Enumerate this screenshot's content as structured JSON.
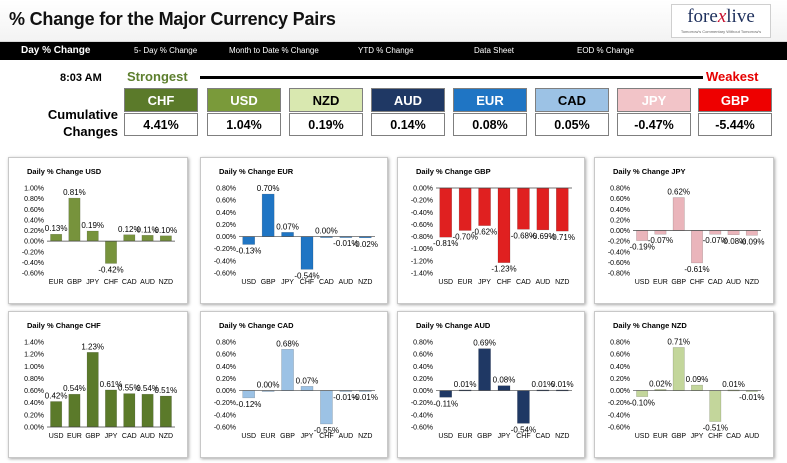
{
  "header": {
    "title": "% Change for the Major Currency Pairs",
    "logo": {
      "brand_pre": "fore",
      "brand_x": "x",
      "brand_post": "live",
      "tagline": "Tomorrow's Commentary Without Tomorrow's"
    }
  },
  "nav": {
    "items": [
      {
        "label": "Day % Change"
      },
      {
        "label": "5- Day % Change"
      },
      {
        "label": "Month to Date % Change"
      },
      {
        "label": "YTD % Change"
      },
      {
        "label": "Data Sheet"
      },
      {
        "label": "EOD % Change"
      }
    ]
  },
  "ranking": {
    "time": "8:03 AM",
    "strongest_label": "Strongest",
    "weakest_label": "Weakest",
    "cumulative_label": "Cumulative Changes",
    "currencies": [
      {
        "name": "CHF",
        "value": "4.41%",
        "bg": "#5b7a2a",
        "fg": "#ffffff"
      },
      {
        "name": "USD",
        "value": "1.04%",
        "bg": "#7a9a3a",
        "fg": "#ffffff"
      },
      {
        "name": "NZD",
        "value": "0.19%",
        "bg": "#d9e8b0",
        "fg": "#000000"
      },
      {
        "name": "AUD",
        "value": "0.14%",
        "bg": "#1f3864",
        "fg": "#ffffff"
      },
      {
        "name": "EUR",
        "value": "0.08%",
        "bg": "#1f75c4",
        "fg": "#ffffff"
      },
      {
        "name": "CAD",
        "value": "0.05%",
        "bg": "#9cc2e5",
        "fg": "#000000"
      },
      {
        "name": "JPY",
        "value": "-0.47%",
        "bg": "#f2c4c8",
        "fg": "#ffffff"
      },
      {
        "name": "GBP",
        "value": "-5.44%",
        "bg": "#ee0000",
        "fg": "#ffffff"
      }
    ]
  },
  "chart_data": [
    {
      "type": "bar",
      "title": "Daily % Change USD",
      "categories": [
        "EUR",
        "GBP",
        "JPY",
        "CHF",
        "CAD",
        "AUD",
        "NZD"
      ],
      "values": [
        0.13,
        0.81,
        0.19,
        -0.42,
        0.12,
        0.11,
        0.1
      ],
      "labels": [
        "0.13%",
        "0.81%",
        "0.19%",
        "-0.42%",
        "0.12%",
        "0.11%",
        "0.10%"
      ],
      "ylim": [
        -0.6,
        1.0
      ],
      "ticks": [
        "1.00%",
        "0.80%",
        "0.60%",
        "0.40%",
        "0.20%",
        "0.00%",
        "-0.20%",
        "-0.40%",
        "-0.60%"
      ],
      "tick_values": [
        1.0,
        0.8,
        0.6,
        0.4,
        0.2,
        0,
        -0.2,
        -0.4,
        -0.6
      ],
      "bar_color": "#77933c"
    },
    {
      "type": "bar",
      "title": "Daily % Change EUR",
      "categories": [
        "USD",
        "GBP",
        "JPY",
        "CHF",
        "CAD",
        "AUD",
        "NZD"
      ],
      "values": [
        -0.13,
        0.7,
        0.07,
        -0.54,
        0.0,
        -0.01,
        -0.02
      ],
      "labels": [
        "-0.13%",
        "0.70%",
        "0.07%",
        "-0.54%",
        "0.00%",
        "-0.01%",
        "-0.02%"
      ],
      "ylim": [
        -0.6,
        0.8
      ],
      "ticks": [
        "0.80%",
        "0.60%",
        "0.40%",
        "0.20%",
        "0.00%",
        "-0.20%",
        "-0.40%",
        "-0.60%"
      ],
      "tick_values": [
        0.8,
        0.6,
        0.4,
        0.2,
        0,
        -0.2,
        -0.4,
        -0.6
      ],
      "bar_color": "#1f75c4"
    },
    {
      "type": "bar",
      "title": "Daily % Change GBP",
      "categories": [
        "USD",
        "EUR",
        "JPY",
        "CHF",
        "CAD",
        "AUD",
        "NZD"
      ],
      "values": [
        -0.81,
        -0.7,
        -0.62,
        -1.23,
        -0.68,
        -0.69,
        -0.71
      ],
      "labels": [
        "-0.81%",
        "-0.70%",
        "-0.62%",
        "-1.23%",
        "-0.68%",
        "-0.69%",
        "-0.71%"
      ],
      "ylim": [
        -1.4,
        0.0
      ],
      "ticks": [
        "0.00%",
        "-0.20%",
        "-0.40%",
        "-0.60%",
        "-0.80%",
        "-1.00%",
        "-1.20%",
        "-1.40%"
      ],
      "tick_values": [
        0,
        -0.2,
        -0.4,
        -0.6,
        -0.8,
        -1.0,
        -1.2,
        -1.4
      ],
      "bar_color": "#e02020"
    },
    {
      "type": "bar",
      "title": "Daily % Change JPY",
      "categories": [
        "USD",
        "EUR",
        "GBP",
        "CHF",
        "CAD",
        "AUD",
        "NZD"
      ],
      "values": [
        -0.19,
        -0.07,
        0.62,
        -0.61,
        -0.07,
        -0.08,
        -0.09
      ],
      "labels": [
        "-0.19%",
        "-0.07%",
        "0.62%",
        "-0.61%",
        "-0.07%",
        "-0.08%",
        "-0.09%"
      ],
      "ylim": [
        -0.8,
        0.8
      ],
      "ticks": [
        "0.80%",
        "0.60%",
        "0.40%",
        "0.20%",
        "0.00%",
        "-0.20%",
        "-0.40%",
        "-0.60%",
        "-0.80%"
      ],
      "tick_values": [
        0.8,
        0.6,
        0.4,
        0.2,
        0,
        -0.2,
        -0.4,
        -0.6,
        -0.8
      ],
      "bar_color": "#eab5bb"
    },
    {
      "type": "bar",
      "title": "Daily % Change CHF",
      "categories": [
        "USD",
        "EUR",
        "GBP",
        "JPY",
        "CAD",
        "AUD",
        "NZD"
      ],
      "values": [
        0.42,
        0.54,
        1.23,
        0.61,
        0.55,
        0.54,
        0.51
      ],
      "labels": [
        "0.42%",
        "0.54%",
        "1.23%",
        "0.61%",
        "0.55%",
        "0.54%",
        "0.51%"
      ],
      "ylim": [
        0.0,
        1.4
      ],
      "ticks": [
        "1.40%",
        "1.20%",
        "1.00%",
        "0.80%",
        "0.60%",
        "0.40%",
        "0.20%",
        "0.00%"
      ],
      "tick_values": [
        1.4,
        1.2,
        1.0,
        0.8,
        0.6,
        0.4,
        0.2,
        0
      ],
      "bar_color": "#5b7a2a"
    },
    {
      "type": "bar",
      "title": "Daily % Change CAD",
      "categories": [
        "USD",
        "EUR",
        "GBP",
        "JPY",
        "CHF",
        "AUD",
        "NZD"
      ],
      "values": [
        -0.12,
        0.0,
        0.68,
        0.07,
        -0.55,
        -0.01,
        -0.01
      ],
      "labels": [
        "-0.12%",
        "0.00%",
        "0.68%",
        "0.07%",
        "-0.55%",
        "-0.01%",
        "-0.01%"
      ],
      "ylim": [
        -0.6,
        0.8
      ],
      "ticks": [
        "0.80%",
        "0.60%",
        "0.40%",
        "0.20%",
        "0.00%",
        "-0.20%",
        "-0.40%",
        "-0.60%"
      ],
      "tick_values": [
        0.8,
        0.6,
        0.4,
        0.2,
        0,
        -0.2,
        -0.4,
        -0.6
      ],
      "bar_color": "#9cc2e5"
    },
    {
      "type": "bar",
      "title": "Daily % Change AUD",
      "categories": [
        "USD",
        "EUR",
        "GBP",
        "JPY",
        "CHF",
        "CAD",
        "NZD"
      ],
      "values": [
        -0.11,
        0.01,
        0.69,
        0.08,
        -0.54,
        0.01,
        0.01
      ],
      "labels": [
        "-0.11%",
        "0.01%",
        "0.69%",
        "0.08%",
        "-0.54%",
        "0.01%",
        "0.01%"
      ],
      "ylim": [
        -0.6,
        0.8
      ],
      "ticks": [
        "0.80%",
        "0.60%",
        "0.40%",
        "0.20%",
        "0.00%",
        "-0.20%",
        "-0.40%",
        "-0.60%"
      ],
      "tick_values": [
        0.8,
        0.6,
        0.4,
        0.2,
        0,
        -0.2,
        -0.4,
        -0.6
      ],
      "bar_color": "#1f3864"
    },
    {
      "type": "bar",
      "title": "Daily % Change NZD",
      "categories": [
        "USD",
        "EUR",
        "GBP",
        "JPY",
        "CHF",
        "CAD",
        "AUD"
      ],
      "values": [
        -0.1,
        0.02,
        0.71,
        0.09,
        -0.51,
        0.01,
        -0.01
      ],
      "labels": [
        "-0.10%",
        "0.02%",
        "0.71%",
        "0.09%",
        "-0.51%",
        "0.01%",
        "-0.01%"
      ],
      "ylim": [
        -0.6,
        0.8
      ],
      "ticks": [
        "0.80%",
        "0.60%",
        "0.40%",
        "0.20%",
        "0.00%",
        "-0.20%",
        "-0.40%",
        "-0.60%"
      ],
      "tick_values": [
        0.8,
        0.6,
        0.4,
        0.2,
        0,
        -0.2,
        -0.4,
        -0.6
      ],
      "bar_color": "#c3d69b"
    }
  ]
}
